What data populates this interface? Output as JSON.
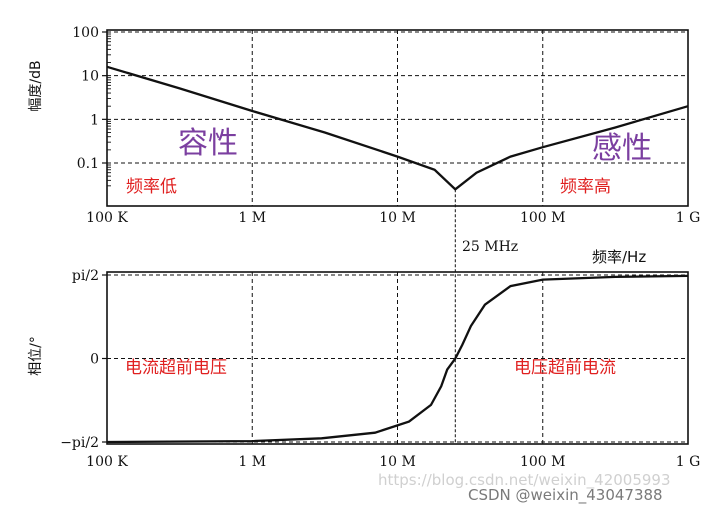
{
  "chart_data": [
    {
      "type": "line",
      "title": "",
      "xscale": "log",
      "yscale": "log",
      "xlim": [
        100000,
        1000000000
      ],
      "ylim": [
        0.01,
        100
      ],
      "grid": true,
      "ylabel": "幅度/dB",
      "x_ticks": [
        {
          "value": 100000,
          "label": "100 K"
        },
        {
          "value": 1000000,
          "label": "1 M"
        },
        {
          "value": 10000000,
          "label": "10 M"
        },
        {
          "value": 100000000,
          "label": "100 M"
        },
        {
          "value": 1000000000,
          "label": "1 G"
        }
      ],
      "y_ticks": [
        {
          "value": 100,
          "label": "100"
        },
        {
          "value": 10,
          "label": "10"
        },
        {
          "value": 1,
          "label": "1"
        },
        {
          "value": 0.1,
          "label": "0.1"
        }
      ],
      "series": [
        {
          "x": [
            100000,
            316000,
            1000000,
            3160000,
            10000000,
            18000000,
            25000000,
            35000000,
            60000000,
            100000000,
            316000000,
            1000000000
          ],
          "y": [
            16,
            5.1,
            1.55,
            0.5,
            0.14,
            0.07,
            0.025,
            0.06,
            0.14,
            0.23,
            0.65,
            2.0
          ]
        }
      ],
      "annotations": [
        {
          "text": "容性",
          "color": "#7b3fa0"
        },
        {
          "text": "感性",
          "color": "#7b3fa0"
        },
        {
          "text": "频率低",
          "color": "#e02020"
        },
        {
          "text": "频率高",
          "color": "#e02020"
        }
      ],
      "marker": {
        "x": 25000000,
        "label": "25 MHz"
      }
    },
    {
      "type": "line",
      "title": "",
      "xscale": "log",
      "xlim": [
        100000,
        1000000000
      ],
      "ylim": [
        -90,
        90
      ],
      "grid": true,
      "xlabel": "频率/Hz",
      "ylabel": "相位/°",
      "x_ticks": [
        {
          "value": 100000,
          "label": "100 K"
        },
        {
          "value": 1000000,
          "label": "1 M"
        },
        {
          "value": 10000000,
          "label": "10 M"
        },
        {
          "value": 100000000,
          "label": "100 M"
        },
        {
          "value": 1000000000,
          "label": "1 G"
        }
      ],
      "y_ticks": [
        {
          "value": 90,
          "label": "pi/2"
        },
        {
          "value": 0,
          "label": "0"
        },
        {
          "value": -90,
          "label": "−pi/2"
        }
      ],
      "series": [
        {
          "x": [
            100000,
            1000000,
            3000000,
            7000000,
            12000000,
            17000000,
            20000000,
            22000000,
            25000000,
            28000000,
            32000000,
            40000000,
            60000000,
            100000000,
            316000000,
            1000000000
          ],
          "y": [
            -90,
            -89,
            -86,
            -80,
            -68,
            -50,
            -30,
            -12,
            0,
            15,
            35,
            58,
            78,
            85,
            88,
            89
          ]
        }
      ],
      "annotations": [
        {
          "text": "电流超前电压",
          "color": "#e02020"
        },
        {
          "text": "电压超前电流",
          "color": "#e02020"
        }
      ]
    }
  ],
  "watermark": {
    "blog_text": "https://blog.csdn.net/weixin_42005993",
    "csdn_text": "CSDN @weixin_43047388"
  }
}
